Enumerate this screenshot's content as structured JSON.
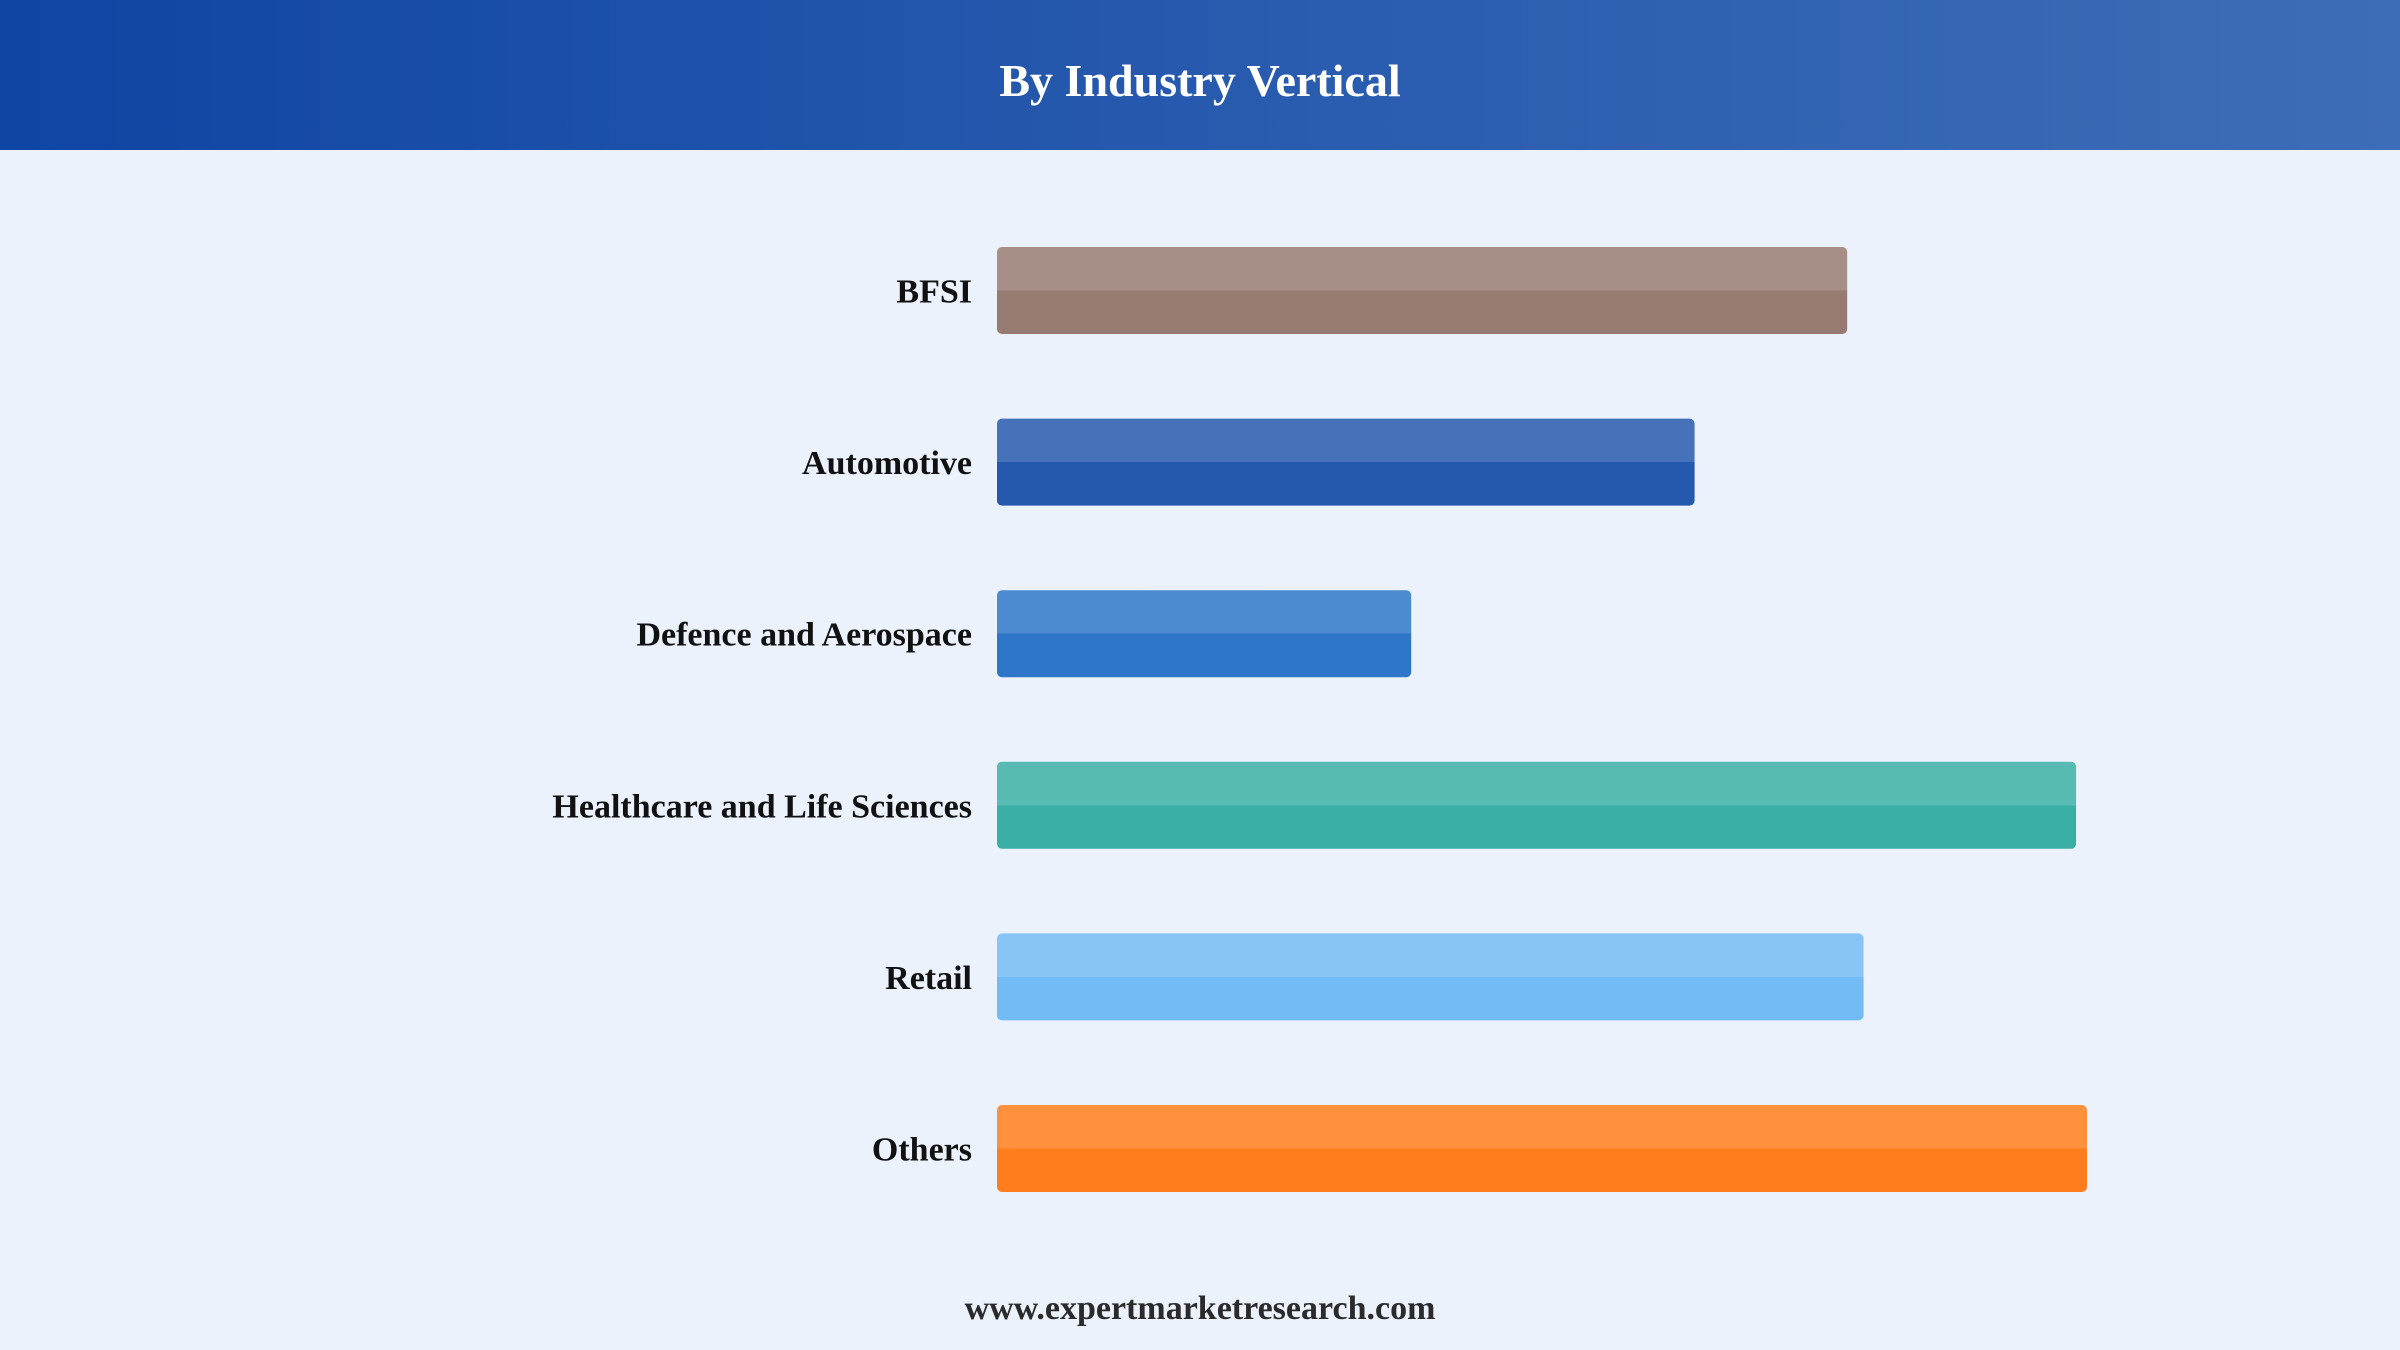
{
  "chart_data": {
    "type": "bar",
    "orientation": "horizontal",
    "title": "By Industry Vertical",
    "categories": [
      "BFSI",
      "Automotive",
      "Defence and Aerospace",
      "Healthcare and Life Sciences",
      "Retail",
      "Others"
    ],
    "values": [
      78,
      64,
      38,
      99,
      79.5,
      100
    ],
    "colors": [
      "#977a72",
      "#2559ad",
      "#2d76c8",
      "#3aafa5",
      "#72bbf4",
      "#ff7d1c"
    ],
    "xlim": [
      0,
      100
    ],
    "grid": false,
    "legend": "none",
    "xlabel": "",
    "ylabel": ""
  },
  "header": {
    "title": "By Industry Vertical"
  },
  "footer": {
    "source": "www.expertmarketresearch.com"
  }
}
